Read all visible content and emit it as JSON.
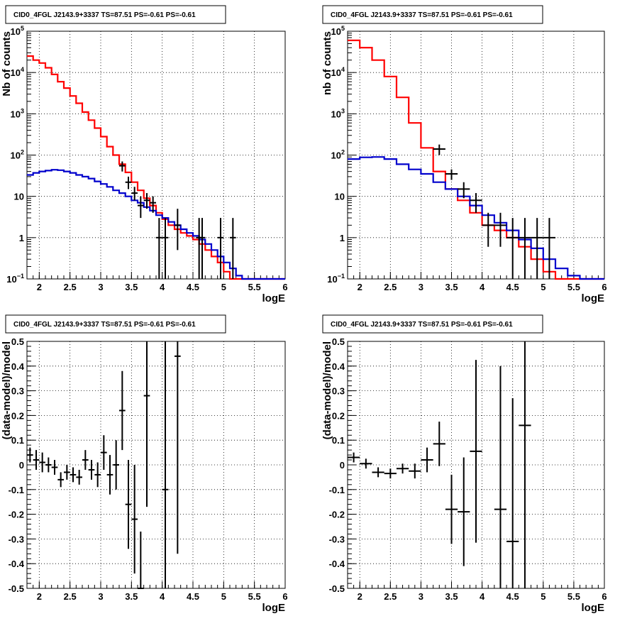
{
  "chart_data": [
    {
      "type": "histogram-line",
      "title": "CID0_4FGL J2143.9+3337 TS=87.51 PS=-0.61 PS=-0.61",
      "xlabel": "logE",
      "ylabel": "Nb of counts",
      "xlim": [
        1.8,
        6.0
      ],
      "ylim": [
        0.1,
        100000
      ],
      "yscale": "log",
      "grid": true,
      "x_ticks": [
        "2",
        "2.5",
        "3",
        "3.5",
        "4",
        "4.5",
        "5",
        "5.5",
        "6"
      ],
      "series": [
        {
          "color": "#ff0000",
          "style": "step",
          "edges": [
            1.8,
            1.9,
            2.0,
            2.1,
            2.2,
            2.3,
            2.4,
            2.5,
            2.6,
            2.7,
            2.8,
            2.9,
            3.0,
            3.1,
            3.2,
            3.3,
            3.4,
            3.5,
            3.6,
            3.7,
            3.8,
            3.9,
            4.0,
            4.1,
            4.2,
            4.3,
            4.4,
            4.5,
            4.6,
            4.7,
            4.8,
            4.9,
            5.0,
            5.1,
            5.2,
            5.3,
            5.4,
            5.5,
            5.6,
            5.7,
            5.8,
            5.9,
            6.0
          ],
          "values": [
            25000,
            20000,
            17000,
            13000,
            9000,
            6000,
            4200,
            2700,
            1800,
            1100,
            700,
            450,
            280,
            160,
            100,
            60,
            38,
            22,
            14,
            9,
            6,
            4,
            2.8,
            2.0,
            1.6,
            1.3,
            1.1,
            0.9,
            0.7,
            0.5,
            0.35,
            0.25,
            0.15,
            0.1,
            0.1,
            0.1,
            0.1,
            0.1,
            0.1,
            0.1,
            0.1,
            0.1
          ]
        },
        {
          "color": "#0000cc",
          "style": "step",
          "edges": [
            1.8,
            1.9,
            2.0,
            2.1,
            2.2,
            2.3,
            2.4,
            2.5,
            2.6,
            2.7,
            2.8,
            2.9,
            3.0,
            3.1,
            3.2,
            3.3,
            3.4,
            3.5,
            3.6,
            3.7,
            3.8,
            3.9,
            4.0,
            4.1,
            4.2,
            4.3,
            4.4,
            4.5,
            4.6,
            4.7,
            4.8,
            4.9,
            5.0,
            5.1,
            5.2,
            5.3,
            5.4,
            5.5,
            5.6,
            5.7,
            5.8,
            5.9,
            6.0
          ],
          "values": [
            33,
            37,
            40,
            42,
            44,
            43,
            40,
            37,
            33,
            30,
            27,
            23,
            20,
            17,
            14,
            12,
            10,
            8,
            7,
            5.5,
            4.5,
            3.5,
            3.0,
            2.4,
            2.0,
            1.6,
            1.3,
            1.1,
            0.9,
            0.7,
            0.5,
            0.35,
            0.25,
            0.18,
            0.12,
            0.1,
            0.1,
            0.1,
            0.1,
            0.1,
            0.1,
            0.1
          ]
        },
        {
          "color": "#000000",
          "style": "points",
          "x": [
            3.35,
            3.45,
            3.55,
            3.65,
            3.75,
            3.85,
            3.95,
            4.05,
            4.25,
            4.6,
            4.65,
            4.95,
            5.15
          ],
          "y": [
            55,
            22,
            12,
            6,
            8,
            7,
            1,
            1,
            2,
            1,
            1,
            1,
            1
          ],
          "xerr": 0.05,
          "ylo": [
            40,
            15,
            8,
            3,
            5,
            4,
            0.1,
            0.1,
            0.5,
            0.1,
            0.1,
            0.1,
            0.1
          ],
          "yhi": [
            70,
            30,
            17,
            10,
            12,
            10,
            3,
            3,
            5,
            3,
            3,
            3,
            3
          ]
        }
      ]
    },
    {
      "type": "histogram-line",
      "title": "CID0_4FGL J2143.9+3337 TS=87.51 PS=-0.61 PS=-0.61",
      "xlabel": "logE",
      "ylabel": "nb of counts",
      "xlim": [
        1.8,
        6.0
      ],
      "ylim": [
        0.1,
        100000
      ],
      "yscale": "log",
      "grid": true,
      "x_ticks": [
        "2",
        "2.5",
        "3",
        "3.5",
        "4",
        "4.5",
        "5",
        "5.5",
        "6"
      ],
      "series": [
        {
          "color": "#ff0000",
          "style": "step",
          "edges": [
            1.8,
            2.0,
            2.2,
            2.4,
            2.6,
            2.8,
            3.0,
            3.2,
            3.4,
            3.6,
            3.8,
            4.0,
            4.2,
            4.4,
            4.6,
            4.8,
            5.0,
            5.2,
            5.4,
            5.6,
            5.8,
            6.0
          ],
          "values": [
            60000,
            40000,
            20000,
            8000,
            2500,
            600,
            150,
            40,
            15,
            8,
            4,
            2.0,
            1.5,
            1.0,
            0.6,
            0.3,
            0.15,
            0.1,
            0.1,
            0.1,
            0.1
          ]
        },
        {
          "color": "#0000cc",
          "style": "step",
          "edges": [
            1.8,
            2.0,
            2.2,
            2.4,
            2.6,
            2.8,
            3.0,
            3.2,
            3.4,
            3.6,
            3.8,
            4.0,
            4.2,
            4.4,
            4.6,
            4.8,
            5.0,
            5.2,
            5.4,
            5.6,
            5.8,
            6.0
          ],
          "values": [
            80,
            88,
            90,
            80,
            60,
            45,
            35,
            22,
            15,
            10,
            6,
            3.5,
            2.3,
            1.5,
            0.9,
            0.55,
            0.3,
            0.18,
            0.12,
            0.1,
            0.1
          ]
        },
        {
          "color": "#000000",
          "style": "points",
          "x": [
            3.3,
            3.5,
            3.7,
            3.9,
            4.1,
            4.3,
            4.5,
            4.7,
            4.9,
            5.1
          ],
          "y": [
            140,
            35,
            15,
            8,
            2,
            2,
            1,
            1,
            1,
            1
          ],
          "xerr": 0.1,
          "ylo": [
            100,
            25,
            9,
            4,
            0.6,
            0.6,
            0.1,
            0.1,
            0.1,
            0.1
          ],
          "yhi": [
            180,
            45,
            22,
            12,
            4,
            4,
            3,
            3,
            3,
            3
          ]
        }
      ]
    },
    {
      "type": "scatter",
      "title": "CID0_4FGL J2143.9+3337 TS=87.51 PS=-0.61 PS=-0.61",
      "xlabel": "logE",
      "ylabel": "(data-model)/model",
      "xlim": [
        1.8,
        6.0
      ],
      "ylim": [
        -0.5,
        0.5
      ],
      "grid": true,
      "x_ticks": [
        "2",
        "2.5",
        "3",
        "3.5",
        "4",
        "4.5",
        "5",
        "5.5",
        "6"
      ],
      "y_ticks": [
        "-0.5",
        "-0.4",
        "-0.3",
        "-0.2",
        "-0.1",
        "0",
        "0.1",
        "0.2",
        "0.3",
        "0.4",
        "0.5"
      ],
      "series": [
        {
          "color": "#000000",
          "style": "points",
          "xerr": 0.05,
          "x": [
            1.85,
            1.95,
            2.05,
            2.15,
            2.25,
            2.35,
            2.45,
            2.55,
            2.65,
            2.75,
            2.85,
            2.95,
            3.05,
            3.15,
            3.25,
            3.35,
            3.45,
            3.55,
            3.65,
            3.75,
            4.05,
            4.25
          ],
          "y": [
            0.04,
            0.02,
            0.01,
            0.0,
            -0.01,
            -0.06,
            -0.03,
            -0.04,
            -0.05,
            0.02,
            -0.02,
            -0.04,
            0.05,
            -0.04,
            0.0,
            0.22,
            -0.16,
            -0.22,
            -0.5,
            0.28,
            -0.1,
            0.44
          ],
          "yerr": [
            0.03,
            0.04,
            0.04,
            0.03,
            0.03,
            0.03,
            0.03,
            0.03,
            0.03,
            0.04,
            0.04,
            0.05,
            0.07,
            0.08,
            0.1,
            0.16,
            0.18,
            0.22,
            0.23,
            0.45,
            0.7,
            0.8
          ]
        }
      ]
    },
    {
      "type": "scatter",
      "title": "CID0_4FGL J2143.9+3337 TS=87.51 PS=-0.61 PS=-0.61",
      "xlabel": "logE",
      "ylabel": "(data-model)/model",
      "xlim": [
        1.8,
        6.0
      ],
      "ylim": [
        -0.5,
        0.5
      ],
      "grid": true,
      "x_ticks": [
        "2",
        "2.5",
        "3",
        "3.5",
        "4",
        "4.5",
        "5",
        "5.5",
        "6"
      ],
      "y_ticks": [
        "-0.5",
        "-0.4",
        "-0.3",
        "-0.2",
        "-0.1",
        "0",
        "0.1",
        "0.2",
        "0.3",
        "0.4",
        "0.5"
      ],
      "series": [
        {
          "color": "#000000",
          "style": "points",
          "xerr": 0.1,
          "x": [
            1.9,
            2.1,
            2.3,
            2.5,
            2.7,
            2.9,
            3.1,
            3.3,
            3.5,
            3.7,
            3.9,
            4.3,
            4.5,
            4.7
          ],
          "y": [
            0.03,
            0.005,
            -0.03,
            -0.035,
            -0.015,
            -0.025,
            0.02,
            0.085,
            -0.18,
            -0.19,
            0.055,
            -0.18,
            -0.31,
            0.16
          ],
          "yerr": [
            0.02,
            0.02,
            0.02,
            0.02,
            0.02,
            0.03,
            0.05,
            0.09,
            0.14,
            0.22,
            0.37,
            0.58,
            0.58,
            0.7
          ]
        }
      ]
    }
  ]
}
